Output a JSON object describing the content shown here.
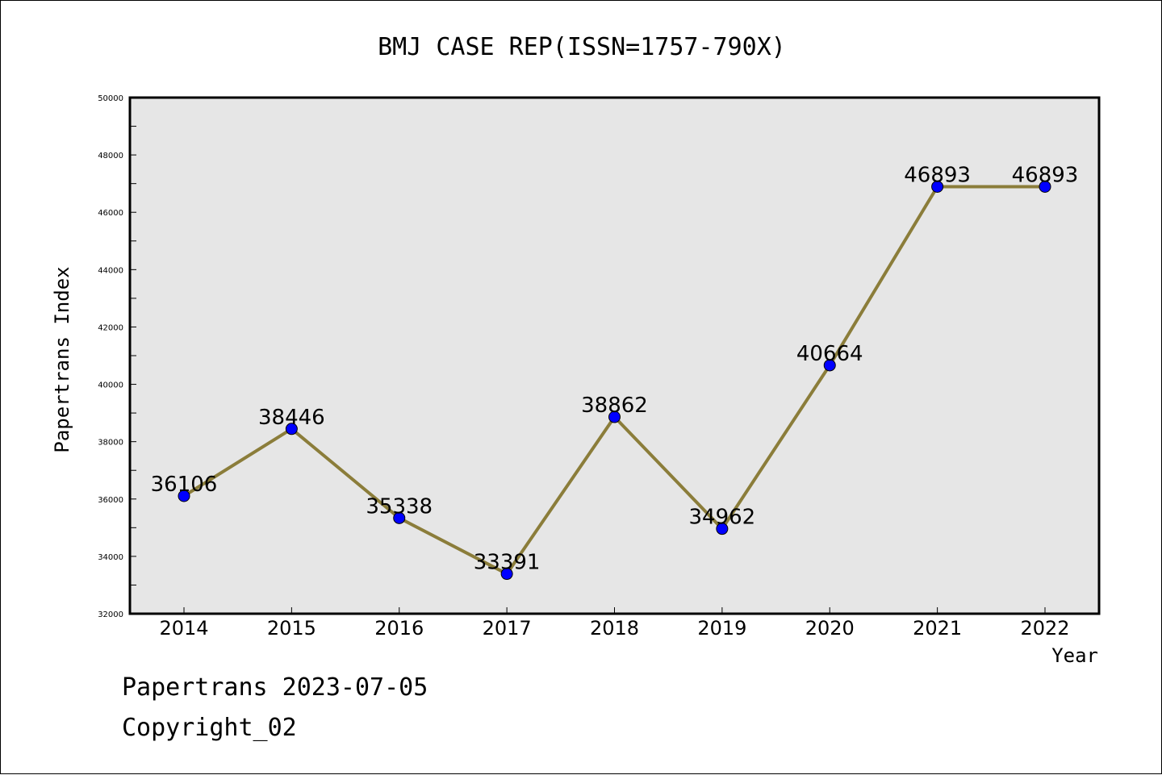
{
  "chart_data": {
    "type": "line",
    "title": "BMJ CASE REP(ISSN=1757-790X)",
    "xlabel": "Year",
    "ylabel": "Papertrans Index",
    "categories": [
      "2014",
      "2015",
      "2016",
      "2017",
      "2018",
      "2019",
      "2020",
      "2021",
      "2022"
    ],
    "series": [
      {
        "values": [
          36106,
          38446,
          35338,
          33391,
          38862,
          34962,
          40664,
          46893,
          46893
        ]
      }
    ],
    "data_labels": [
      "36106",
      "38446",
      "35338",
      "33391",
      "38862",
      "34962",
      "40664",
      "46893",
      "46893"
    ],
    "ylim": [
      32000,
      50000
    ],
    "yticks": [
      "32000",
      "34000",
      "36000",
      "38000",
      "40000",
      "42000",
      "44000",
      "46000",
      "48000",
      "50000"
    ],
    "grid": false,
    "colors": {
      "plot_bg": "#e6e6e6",
      "line": "#8b7d3a",
      "marker": "#0000ff"
    }
  },
  "footer": {
    "line1": "Papertrans 2023-07-05",
    "line2": "Copyright_02"
  }
}
